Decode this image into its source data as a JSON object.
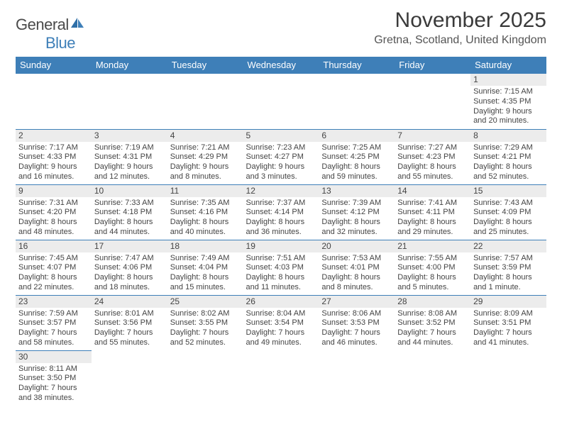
{
  "logo": {
    "general": "General",
    "blue": "Blue"
  },
  "title": "November 2025",
  "location": "Gretna, Scotland, United Kingdom",
  "colors": {
    "headerBg": "#3e7fb8",
    "headerText": "#ffffff",
    "dayBg": "#ececec",
    "border": "#3e7fb8",
    "text": "#444444"
  },
  "weekdays": [
    "Sunday",
    "Monday",
    "Tuesday",
    "Wednesday",
    "Thursday",
    "Friday",
    "Saturday"
  ],
  "weeks": [
    [
      null,
      null,
      null,
      null,
      null,
      null,
      {
        "n": "1",
        "sunrise": "Sunrise: 7:15 AM",
        "sunset": "Sunset: 4:35 PM",
        "day1": "Daylight: 9 hours",
        "day2": "and 20 minutes."
      }
    ],
    [
      {
        "n": "2",
        "sunrise": "Sunrise: 7:17 AM",
        "sunset": "Sunset: 4:33 PM",
        "day1": "Daylight: 9 hours",
        "day2": "and 16 minutes."
      },
      {
        "n": "3",
        "sunrise": "Sunrise: 7:19 AM",
        "sunset": "Sunset: 4:31 PM",
        "day1": "Daylight: 9 hours",
        "day2": "and 12 minutes."
      },
      {
        "n": "4",
        "sunrise": "Sunrise: 7:21 AM",
        "sunset": "Sunset: 4:29 PM",
        "day1": "Daylight: 9 hours",
        "day2": "and 8 minutes."
      },
      {
        "n": "5",
        "sunrise": "Sunrise: 7:23 AM",
        "sunset": "Sunset: 4:27 PM",
        "day1": "Daylight: 9 hours",
        "day2": "and 3 minutes."
      },
      {
        "n": "6",
        "sunrise": "Sunrise: 7:25 AM",
        "sunset": "Sunset: 4:25 PM",
        "day1": "Daylight: 8 hours",
        "day2": "and 59 minutes."
      },
      {
        "n": "7",
        "sunrise": "Sunrise: 7:27 AM",
        "sunset": "Sunset: 4:23 PM",
        "day1": "Daylight: 8 hours",
        "day2": "and 55 minutes."
      },
      {
        "n": "8",
        "sunrise": "Sunrise: 7:29 AM",
        "sunset": "Sunset: 4:21 PM",
        "day1": "Daylight: 8 hours",
        "day2": "and 52 minutes."
      }
    ],
    [
      {
        "n": "9",
        "sunrise": "Sunrise: 7:31 AM",
        "sunset": "Sunset: 4:20 PM",
        "day1": "Daylight: 8 hours",
        "day2": "and 48 minutes."
      },
      {
        "n": "10",
        "sunrise": "Sunrise: 7:33 AM",
        "sunset": "Sunset: 4:18 PM",
        "day1": "Daylight: 8 hours",
        "day2": "and 44 minutes."
      },
      {
        "n": "11",
        "sunrise": "Sunrise: 7:35 AM",
        "sunset": "Sunset: 4:16 PM",
        "day1": "Daylight: 8 hours",
        "day2": "and 40 minutes."
      },
      {
        "n": "12",
        "sunrise": "Sunrise: 7:37 AM",
        "sunset": "Sunset: 4:14 PM",
        "day1": "Daylight: 8 hours",
        "day2": "and 36 minutes."
      },
      {
        "n": "13",
        "sunrise": "Sunrise: 7:39 AM",
        "sunset": "Sunset: 4:12 PM",
        "day1": "Daylight: 8 hours",
        "day2": "and 32 minutes."
      },
      {
        "n": "14",
        "sunrise": "Sunrise: 7:41 AM",
        "sunset": "Sunset: 4:11 PM",
        "day1": "Daylight: 8 hours",
        "day2": "and 29 minutes."
      },
      {
        "n": "15",
        "sunrise": "Sunrise: 7:43 AM",
        "sunset": "Sunset: 4:09 PM",
        "day1": "Daylight: 8 hours",
        "day2": "and 25 minutes."
      }
    ],
    [
      {
        "n": "16",
        "sunrise": "Sunrise: 7:45 AM",
        "sunset": "Sunset: 4:07 PM",
        "day1": "Daylight: 8 hours",
        "day2": "and 22 minutes."
      },
      {
        "n": "17",
        "sunrise": "Sunrise: 7:47 AM",
        "sunset": "Sunset: 4:06 PM",
        "day1": "Daylight: 8 hours",
        "day2": "and 18 minutes."
      },
      {
        "n": "18",
        "sunrise": "Sunrise: 7:49 AM",
        "sunset": "Sunset: 4:04 PM",
        "day1": "Daylight: 8 hours",
        "day2": "and 15 minutes."
      },
      {
        "n": "19",
        "sunrise": "Sunrise: 7:51 AM",
        "sunset": "Sunset: 4:03 PM",
        "day1": "Daylight: 8 hours",
        "day2": "and 11 minutes."
      },
      {
        "n": "20",
        "sunrise": "Sunrise: 7:53 AM",
        "sunset": "Sunset: 4:01 PM",
        "day1": "Daylight: 8 hours",
        "day2": "and 8 minutes."
      },
      {
        "n": "21",
        "sunrise": "Sunrise: 7:55 AM",
        "sunset": "Sunset: 4:00 PM",
        "day1": "Daylight: 8 hours",
        "day2": "and 5 minutes."
      },
      {
        "n": "22",
        "sunrise": "Sunrise: 7:57 AM",
        "sunset": "Sunset: 3:59 PM",
        "day1": "Daylight: 8 hours",
        "day2": "and 1 minute."
      }
    ],
    [
      {
        "n": "23",
        "sunrise": "Sunrise: 7:59 AM",
        "sunset": "Sunset: 3:57 PM",
        "day1": "Daylight: 7 hours",
        "day2": "and 58 minutes."
      },
      {
        "n": "24",
        "sunrise": "Sunrise: 8:01 AM",
        "sunset": "Sunset: 3:56 PM",
        "day1": "Daylight: 7 hours",
        "day2": "and 55 minutes."
      },
      {
        "n": "25",
        "sunrise": "Sunrise: 8:02 AM",
        "sunset": "Sunset: 3:55 PM",
        "day1": "Daylight: 7 hours",
        "day2": "and 52 minutes."
      },
      {
        "n": "26",
        "sunrise": "Sunrise: 8:04 AM",
        "sunset": "Sunset: 3:54 PM",
        "day1": "Daylight: 7 hours",
        "day2": "and 49 minutes."
      },
      {
        "n": "27",
        "sunrise": "Sunrise: 8:06 AM",
        "sunset": "Sunset: 3:53 PM",
        "day1": "Daylight: 7 hours",
        "day2": "and 46 minutes."
      },
      {
        "n": "28",
        "sunrise": "Sunrise: 8:08 AM",
        "sunset": "Sunset: 3:52 PM",
        "day1": "Daylight: 7 hours",
        "day2": "and 44 minutes."
      },
      {
        "n": "29",
        "sunrise": "Sunrise: 8:09 AM",
        "sunset": "Sunset: 3:51 PM",
        "day1": "Daylight: 7 hours",
        "day2": "and 41 minutes."
      }
    ],
    [
      {
        "n": "30",
        "sunrise": "Sunrise: 8:11 AM",
        "sunset": "Sunset: 3:50 PM",
        "day1": "Daylight: 7 hours",
        "day2": "and 38 minutes."
      },
      null,
      null,
      null,
      null,
      null,
      null
    ]
  ]
}
